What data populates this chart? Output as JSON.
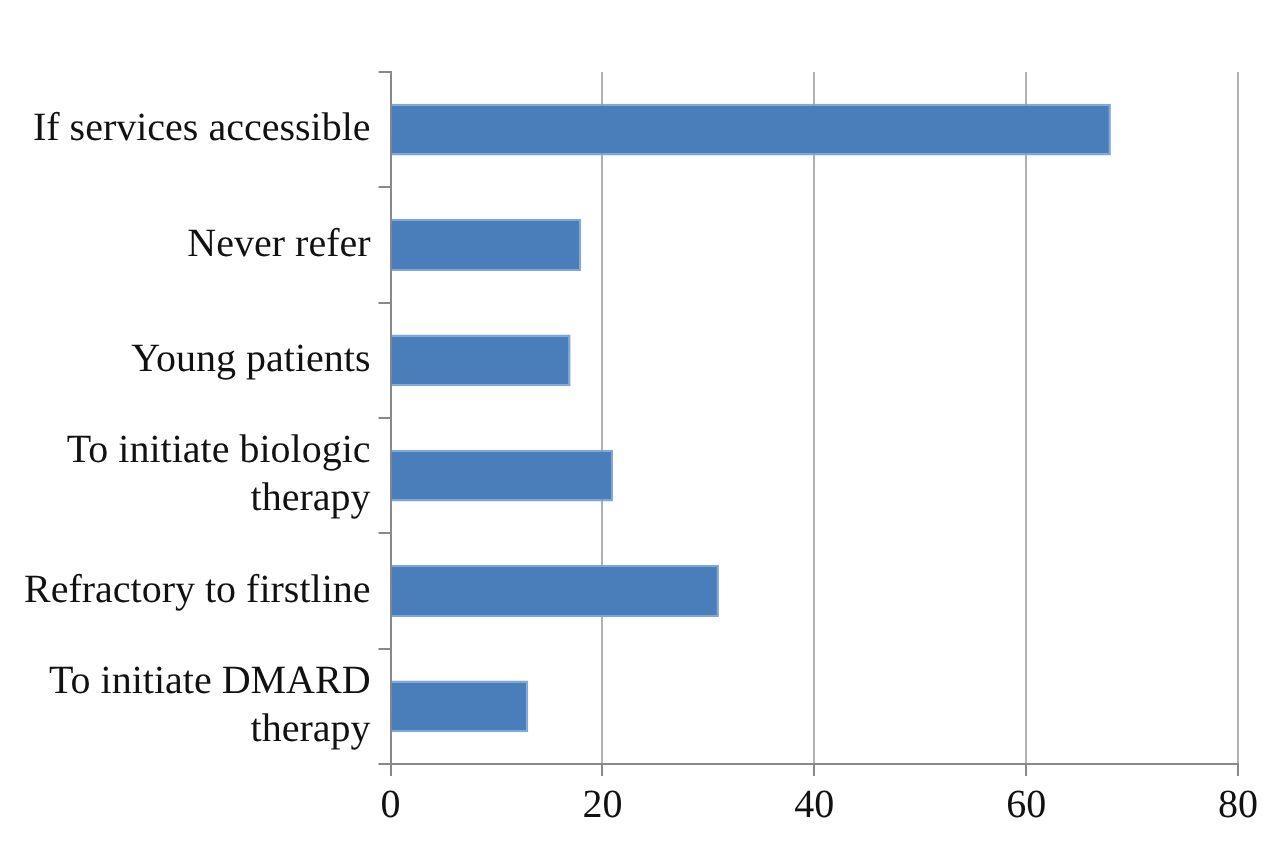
{
  "chart_data": {
    "type": "bar",
    "orientation": "horizontal",
    "categories": [
      "If services accessible",
      "Never refer",
      "Young patients",
      "To initiate biologic therapy",
      "Refractory to firstline",
      "To initiate DMARD therapy"
    ],
    "values": [
      68,
      18,
      17,
      21,
      31,
      13
    ],
    "color": "#4a7ebb",
    "xlim": [
      0,
      80
    ],
    "xticks": [
      0,
      20,
      40,
      60,
      80
    ],
    "grid": "x",
    "legend": false
  }
}
